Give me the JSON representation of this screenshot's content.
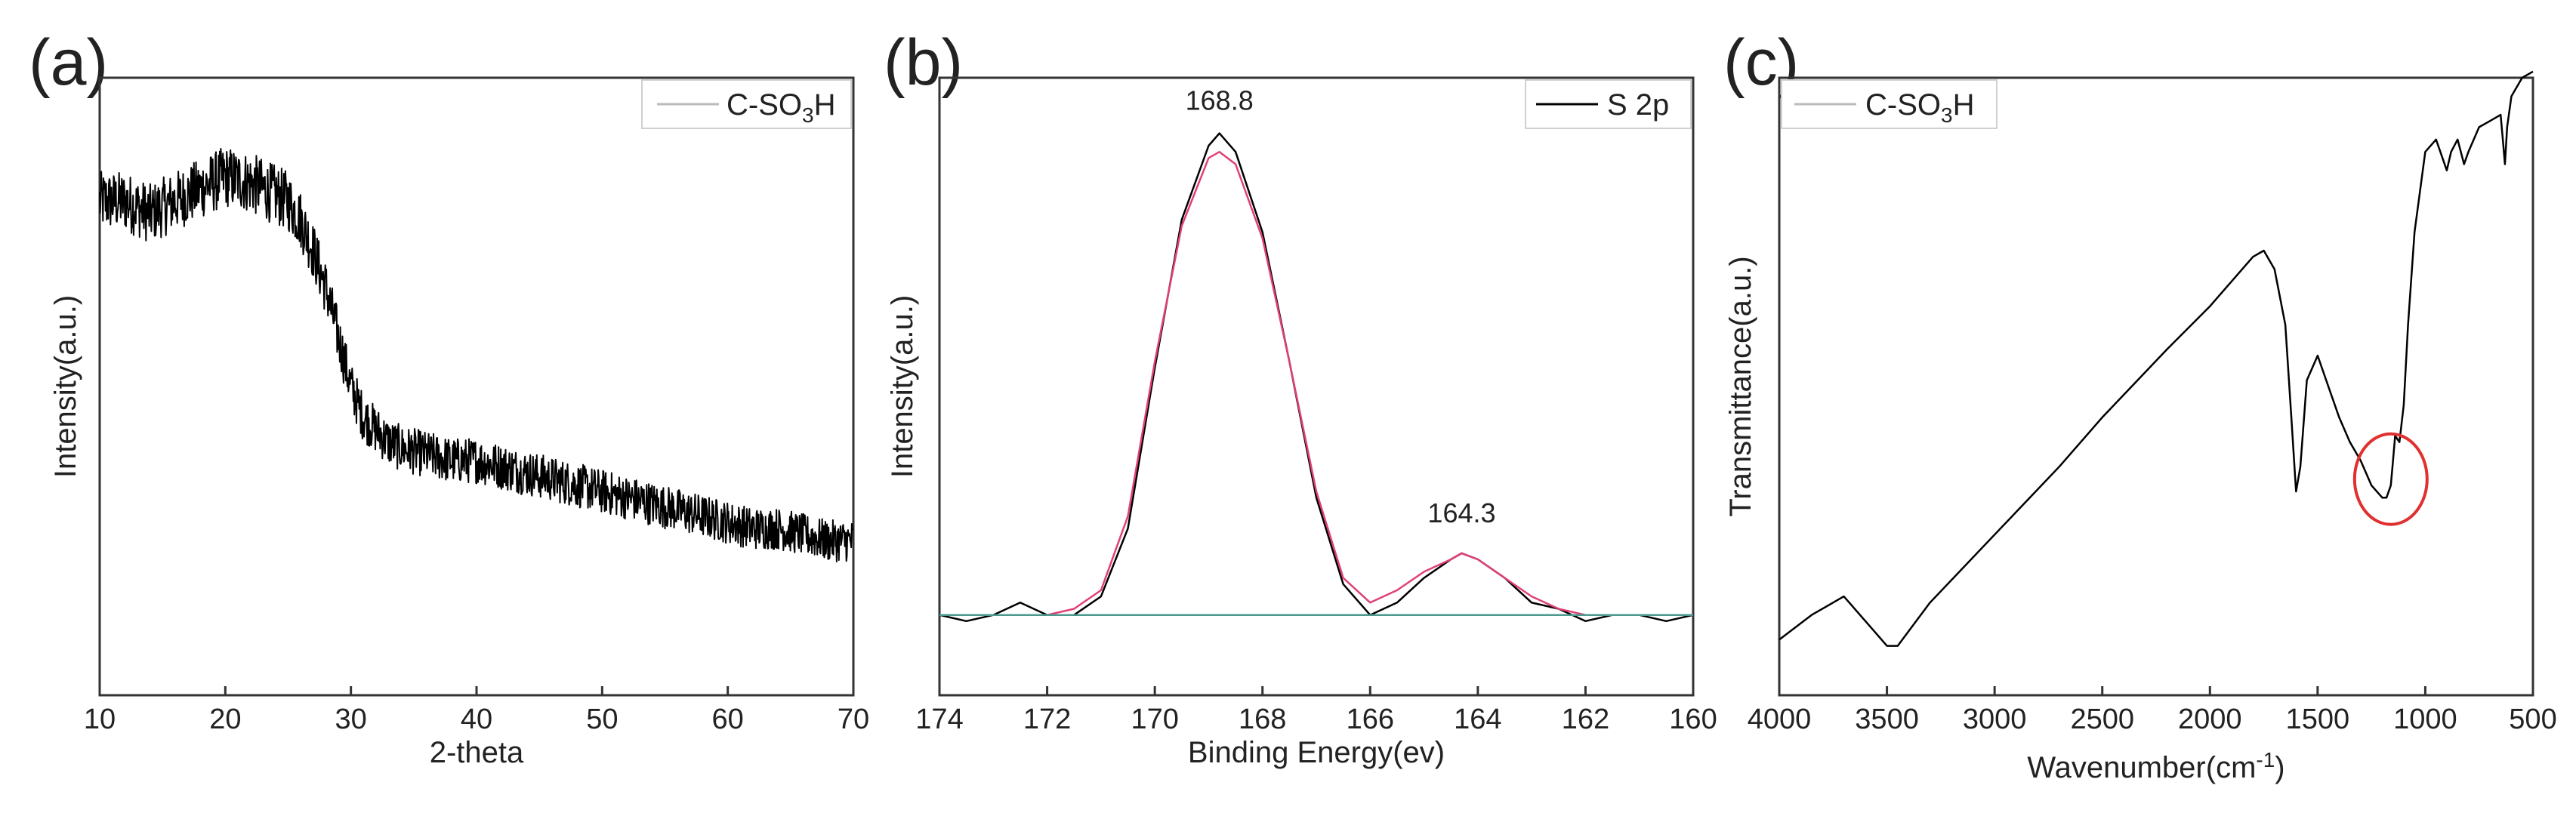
{
  "figure": {
    "panels": [
      "(a)",
      "(b)",
      "(c)"
    ]
  },
  "chart_data": [
    {
      "id": "a",
      "type": "line",
      "panel_label": "(a)",
      "title": "",
      "xlabel": "2-theta",
      "ylabel": "Intensity(a.u.)",
      "xlim": [
        10,
        70
      ],
      "ylim": [
        0,
        1
      ],
      "x_ticks": [
        10,
        20,
        30,
        40,
        50,
        60,
        70
      ],
      "x_tick_labels": [
        "10",
        "20",
        "30",
        "40",
        "50",
        "60",
        "70"
      ],
      "legend": [
        {
          "label_main": "C-SO",
          "label_sub": "3",
          "label_tail": "H",
          "color": "#bbbbbb"
        }
      ],
      "legend_position": "top-right",
      "series": [
        {
          "name": "C-SO3H",
          "color": "#000000",
          "noise": 0.045,
          "x": [
            10,
            12,
            14,
            16,
            18,
            20,
            22,
            24,
            25,
            26,
            27,
            28,
            29,
            30,
            31,
            32,
            33,
            34,
            36,
            38,
            40,
            42,
            44,
            46,
            48,
            50,
            52,
            54,
            56,
            58,
            60,
            62,
            64,
            66,
            68,
            70
          ],
          "y": [
            0.8,
            0.8,
            0.78,
            0.8,
            0.82,
            0.84,
            0.83,
            0.81,
            0.8,
            0.77,
            0.72,
            0.66,
            0.58,
            0.5,
            0.45,
            0.43,
            0.41,
            0.4,
            0.39,
            0.38,
            0.38,
            0.37,
            0.36,
            0.35,
            0.34,
            0.33,
            0.32,
            0.31,
            0.3,
            0.29,
            0.28,
            0.27,
            0.27,
            0.26,
            0.25,
            0.25
          ]
        }
      ]
    },
    {
      "id": "b",
      "type": "line",
      "panel_label": "(b)",
      "title": "",
      "xlabel": "Binding Energy(ev)",
      "ylabel": "Intensity(a.u.)",
      "xlim": [
        174,
        160
      ],
      "ylim": [
        0,
        1
      ],
      "x_ticks": [
        174,
        172,
        170,
        168,
        166,
        164,
        162,
        160
      ],
      "x_tick_labels": [
        "174",
        "172",
        "170",
        "168",
        "166",
        "164",
        "162",
        "160"
      ],
      "legend": [
        {
          "label": "S 2p",
          "color": "#000000"
        }
      ],
      "legend_position": "top-right",
      "annotations": [
        {
          "text": "168.8",
          "x": 168.8,
          "y": 0.97
        },
        {
          "text": "164.3",
          "x": 164.3,
          "y": 0.28
        }
      ],
      "series": [
        {
          "name": "S 2p",
          "color": "#000000",
          "x": [
            174,
            173.5,
            173,
            172.5,
            172,
            171.5,
            171,
            170.5,
            170,
            169.5,
            169,
            168.8,
            168.5,
            168,
            167.5,
            167,
            166.5,
            166,
            165.5,
            165,
            164.5,
            164.3,
            164,
            163.5,
            163,
            162.5,
            162,
            161.5,
            161,
            160.5,
            160
          ],
          "y": [
            0.13,
            0.12,
            0.13,
            0.15,
            0.13,
            0.13,
            0.16,
            0.27,
            0.53,
            0.77,
            0.89,
            0.91,
            0.88,
            0.75,
            0.54,
            0.32,
            0.18,
            0.13,
            0.15,
            0.19,
            0.22,
            0.23,
            0.22,
            0.19,
            0.15,
            0.14,
            0.12,
            0.13,
            0.13,
            0.12,
            0.13
          ]
        },
        {
          "name": "fit envelope",
          "color": "#e0407a",
          "x": [
            174,
            173,
            172,
            171.5,
            171,
            170.5,
            170,
            169.5,
            169,
            168.8,
            168.5,
            168,
            167.5,
            167,
            166.5,
            166,
            165.5,
            165,
            164.5,
            164.3,
            164,
            163.5,
            163,
            162.5,
            162,
            161,
            160
          ],
          "y": [
            0.13,
            0.13,
            0.13,
            0.14,
            0.17,
            0.29,
            0.54,
            0.76,
            0.87,
            0.88,
            0.86,
            0.74,
            0.54,
            0.33,
            0.19,
            0.15,
            0.17,
            0.2,
            0.22,
            0.23,
            0.22,
            0.19,
            0.16,
            0.14,
            0.13,
            0.13,
            0.13
          ]
        },
        {
          "name": "baseline",
          "color": "#4a9a8f",
          "x": [
            174,
            160
          ],
          "y": [
            0.13,
            0.13
          ]
        }
      ]
    },
    {
      "id": "c",
      "type": "line",
      "panel_label": "(c)",
      "title": "",
      "xlabel_main": "Wavenumber(cm",
      "xlabel_sup": "-1",
      "xlabel_tail": ")",
      "ylabel": "Transmittance(a.u.)",
      "xlim": [
        4000,
        500
      ],
      "ylim": [
        0,
        1
      ],
      "x_ticks": [
        4000,
        3500,
        3000,
        2500,
        2000,
        1500,
        1000,
        500
      ],
      "x_tick_labels": [
        "4000",
        "3500",
        "3000",
        "2500",
        "2000",
        "1500",
        "1000",
        "500"
      ],
      "legend": [
        {
          "label_main": "C-SO",
          "label_sub": "3",
          "label_tail": "H",
          "color": "#bbbbbb"
        }
      ],
      "legend_position": "top-left",
      "highlight_circle": {
        "x": 1160,
        "y": 0.35,
        "color": "#e03030"
      },
      "series": [
        {
          "name": "C-SO3H",
          "color": "#000000",
          "x": [
            4000,
            3850,
            3700,
            3600,
            3500,
            3450,
            3300,
            3000,
            2700,
            2500,
            2200,
            2000,
            1900,
            1800,
            1750,
            1700,
            1650,
            1620,
            1600,
            1580,
            1550,
            1500,
            1450,
            1400,
            1350,
            1300,
            1250,
            1200,
            1180,
            1160,
            1150,
            1140,
            1120,
            1100,
            1080,
            1050,
            1000,
            950,
            900,
            880,
            850,
            820,
            800,
            750,
            700,
            650,
            640,
            630,
            620,
            600,
            550,
            500
          ],
          "y": [
            0.09,
            0.13,
            0.16,
            0.12,
            0.08,
            0.08,
            0.15,
            0.26,
            0.37,
            0.45,
            0.56,
            0.63,
            0.67,
            0.71,
            0.72,
            0.69,
            0.6,
            0.44,
            0.33,
            0.37,
            0.51,
            0.55,
            0.5,
            0.45,
            0.41,
            0.38,
            0.34,
            0.32,
            0.32,
            0.34,
            0.38,
            0.42,
            0.41,
            0.47,
            0.6,
            0.75,
            0.88,
            0.9,
            0.85,
            0.88,
            0.9,
            0.86,
            0.88,
            0.92,
            0.93,
            0.94,
            0.9,
            0.86,
            0.92,
            0.97,
            1.0,
            1.01
          ]
        }
      ]
    }
  ]
}
